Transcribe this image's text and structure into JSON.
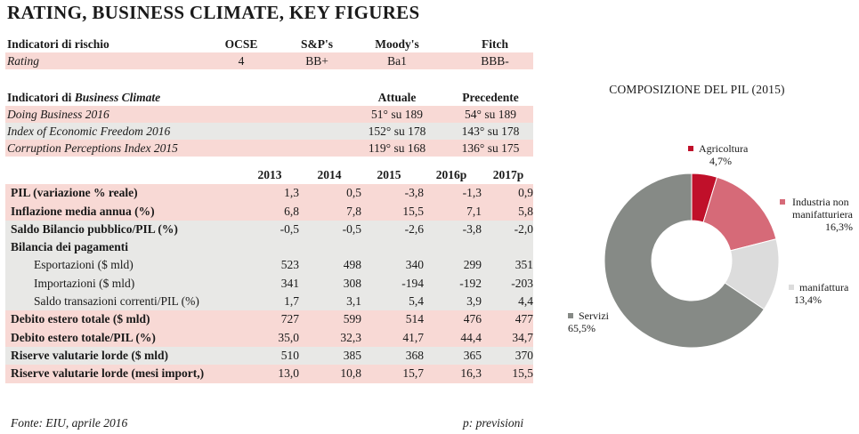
{
  "title": "RATING, BUSINESS CLIMATE, KEY FIGURES",
  "rating": {
    "header": [
      "Indicatori di rischio",
      "OCSE",
      "S&P's",
      "Moody's",
      "Fitch"
    ],
    "row": [
      "Rating",
      "4",
      "BB+",
      "Ba1",
      "BBB-"
    ]
  },
  "climate": {
    "header_prefix": "Indicatori di ",
    "header_emph": "Business Climate",
    "col1": "Attuale",
    "col2": "Precedente",
    "rows": [
      {
        "label": "Doing Business 2016",
        "cur": "51° su 189",
        "prev": "54° su 189"
      },
      {
        "label": "Index of Economic Freedom 2016",
        "cur": "152° su 178",
        "prev": "143° su 178"
      },
      {
        "label": "Corruption Perceptions Index 2015",
        "cur": "119° su 168",
        "prev": "136° su 175"
      }
    ]
  },
  "keyfig": {
    "years": [
      "2013",
      "2014",
      "2015",
      "2016p",
      "2017p"
    ],
    "rows": [
      {
        "label": "PIL (variazione % reale)",
        "v": [
          "1,3",
          "0,5",
          "-3,8",
          "-1,3",
          "0,9"
        ]
      },
      {
        "label": "Inflazione media annua (%)",
        "v": [
          "6,8",
          "7,8",
          "15,5",
          "7,1",
          "5,8"
        ]
      },
      {
        "label": "Saldo Bilancio pubblico/PIL (%)",
        "v": [
          "-0,5",
          "-0,5",
          "-2,6",
          "-3,8",
          "-2,0"
        ]
      },
      {
        "label": "Bilancia dei pagamenti",
        "v": [
          "",
          "",
          "",
          "",
          ""
        ]
      },
      {
        "label": "Esportazioni ($ mld)",
        "v": [
          "523",
          "498",
          "340",
          "299",
          "351"
        ]
      },
      {
        "label": "Importazioni ($ mld)",
        "v": [
          "341",
          "308",
          "-194",
          "-192",
          "-203"
        ]
      },
      {
        "label": "Saldo transazioni correnti/PIL (%)",
        "v": [
          "1,7",
          "3,1",
          "5,4",
          "3,9",
          "4,4"
        ]
      },
      {
        "label": "Debito estero totale ($ mld)",
        "v": [
          "727",
          "599",
          "514",
          "476",
          "477"
        ]
      },
      {
        "label": "Debito estero totale/PIL (%)",
        "v": [
          "35,0",
          "32,3",
          "41,7",
          "44,4",
          "34,7"
        ]
      },
      {
        "label": "Riserve valutarie lorde ($ mld)",
        "v": [
          "510",
          "385",
          "368",
          "365",
          "370"
        ]
      },
      {
        "label": "Riserve valutarie lorde (mesi import,)",
        "v": [
          "13,0",
          "10,8",
          "15,7",
          "16,3",
          "15,5"
        ]
      }
    ]
  },
  "footer": {
    "source": "Fonte: EIU, aprile 2016",
    "note": "p: previsioni"
  },
  "chart_data": {
    "type": "pie",
    "title": "COMPOSIZIONE DEL PIL (2015)",
    "donut": true,
    "categories": [
      "Agricoltura",
      "Industria non manifatturiera",
      "manifattura",
      "Servizi"
    ],
    "values": [
      4.7,
      16.3,
      13.4,
      65.5
    ],
    "labels": [
      "4,7%",
      "16,3%",
      "13,4%",
      "65,5%"
    ],
    "colors": [
      "#c0102a",
      "#d66a78",
      "#dcdcdc",
      "#868a86"
    ],
    "legend": "labels-beside-slices"
  }
}
